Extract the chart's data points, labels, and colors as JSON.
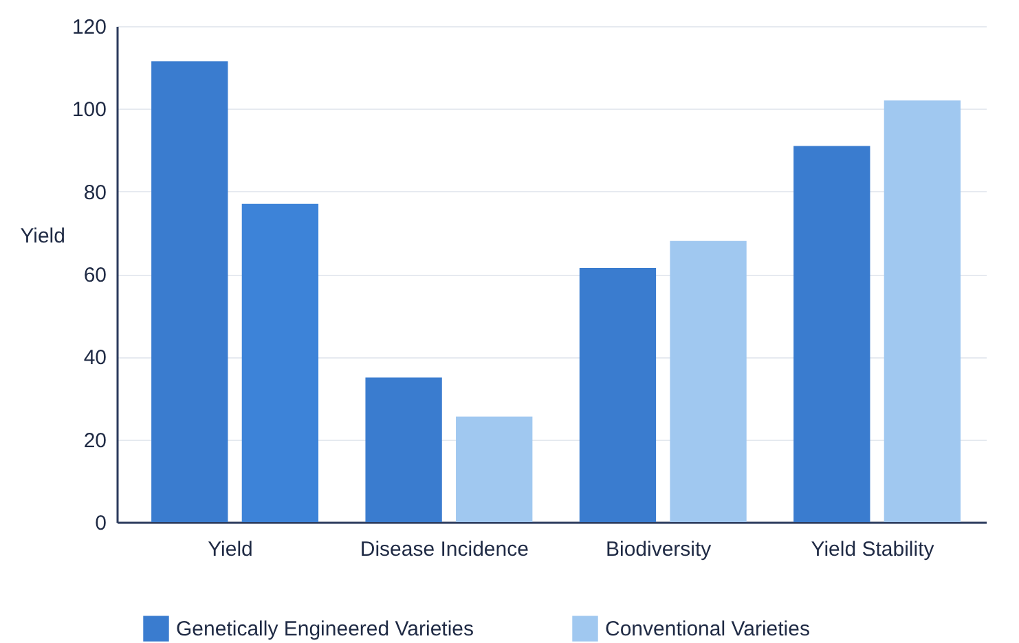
{
  "chart_data": {
    "type": "bar",
    "ylabel": "Yield",
    "categories": [
      "Yield",
      "Disease Incidence",
      "Biodiversity",
      "Yield Stability"
    ],
    "series": [
      {
        "name": "Genetically Engineered Varieties",
        "color": "#3a7ccf",
        "values": [
          111.5,
          35,
          61.5,
          91
        ]
      },
      {
        "name": "Conventional Varieties",
        "color": "#a0c8f0",
        "colors": [
          "#3d83d8",
          "#a0c8f0",
          "#a0c8f0",
          "#a0c8f0"
        ],
        "values": [
          77,
          25.5,
          68,
          102
        ]
      }
    ],
    "ylim": [
      0,
      120
    ],
    "yticks": [
      0,
      20,
      40,
      60,
      80,
      100,
      120
    ],
    "grid": "y",
    "legend": "bottom"
  }
}
